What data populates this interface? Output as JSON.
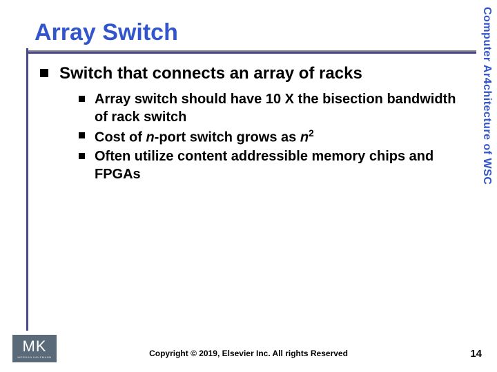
{
  "title": "Array Switch",
  "side_label": "Computer Ar4chitecture of WSC",
  "main_point": "Switch that connects an array of racks",
  "sub_points": [
    {
      "pre": "Array switch should have 10 X the bisection bandwidth of rack switch"
    },
    {
      "pre": "Cost of ",
      "ital1": "n",
      "mid": "-port switch grows as ",
      "ital2": "n",
      "sup": "2"
    },
    {
      "pre": "Often utilize content addressible memory chips and FPGAs"
    }
  ],
  "logo": {
    "main": "MK",
    "sub": "MORGAN KAUFMANN"
  },
  "copyright": "Copyright © 2019, Elsevier Inc. All rights Reserved",
  "page_number": "14",
  "colors": {
    "title": "#3355cc",
    "rule": "#4a4a8a",
    "logo_bg": "#5a6a78",
    "text": "#000000",
    "bg": "#ffffff"
  }
}
